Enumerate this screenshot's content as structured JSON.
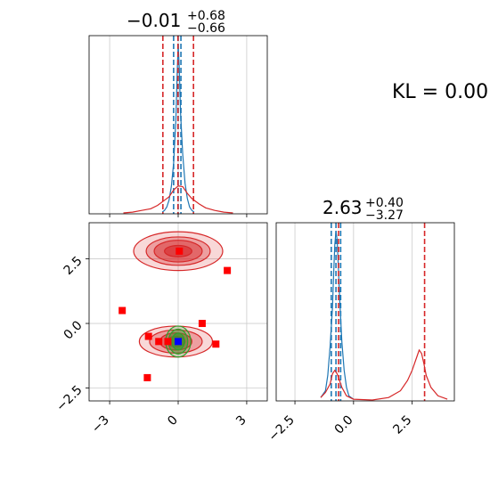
{
  "chart_data": {
    "type": "corner",
    "annotation": "KL = 0.00",
    "panels": {
      "top_left": {
        "type": "histogram",
        "title": {
          "main": "−0.01",
          "sup": "+0.68",
          "sub": "−0.66"
        },
        "xlim": [
          -3.9,
          3.9
        ],
        "grid": true,
        "series": [
          {
            "name": "",
            "color": "#1f77b4",
            "x": [
              -0.7,
              -0.6,
              -0.5,
              -0.4,
              -0.3,
              -0.2,
              -0.1,
              -0.05,
              0,
              0.05,
              0.1,
              0.2,
              0.3,
              0.4,
              0.5,
              0.6,
              0.7
            ],
            "density": [
              0.01,
              0.02,
              0.04,
              0.08,
              0.16,
              0.3,
              0.55,
              0.8,
              1.0,
              0.85,
              0.6,
              0.35,
              0.18,
              0.09,
              0.04,
              0.02,
              0.01
            ],
            "quantile_lines": [
              -0.2,
              0.0,
              0.12
            ]
          },
          {
            "name": "",
            "color": "#d62728",
            "x": [
              -2.4,
              -2.0,
              -1.6,
              -1.2,
              -0.9,
              -0.6,
              -0.4,
              -0.2,
              0,
              0.2,
              0.4,
              0.6,
              0.9,
              1.2,
              1.6,
              2.0,
              2.4
            ],
            "density": [
              0.005,
              0.01,
              0.02,
              0.03,
              0.05,
              0.08,
              0.1,
              0.14,
              0.165,
              0.16,
              0.12,
              0.09,
              0.06,
              0.035,
              0.02,
              0.01,
              0.005
            ],
            "quantile_lines": [
              -0.67,
              -0.01,
              0.67
            ]
          }
        ]
      },
      "bottom_left": {
        "type": "2d-density",
        "xlim": [
          -3.9,
          3.9
        ],
        "ylim": [
          -3.0,
          3.9
        ],
        "xticks": [
          -3,
          0,
          3
        ],
        "yticks": [
          -2.5,
          0.0,
          2.5
        ],
        "xtick_labels": [
          "−3",
          "0",
          "3"
        ],
        "ytick_labels": [
          "−2.5",
          "0.0",
          "2.5"
        ],
        "grid": true,
        "contour_regions": [
          {
            "center": [
              0.0,
              2.8
            ],
            "rx": [
              1.95,
              1.4,
              1.05,
              0.6
            ],
            "ry": [
              0.75,
              0.55,
              0.42,
              0.22
            ],
            "color": "#d62728"
          },
          {
            "center": [
              -0.1,
              -0.7
            ],
            "rx": [
              1.6,
              1.15,
              0.7,
              0.4
            ],
            "ry": [
              0.6,
              0.45,
              0.33,
              0.2
            ],
            "color": "#d62728"
          },
          {
            "center": [
              0.0,
              -0.7
            ],
            "rx": [
              0.55,
              0.42,
              0.28
            ],
            "ry": [
              0.6,
              0.48,
              0.32
            ],
            "color": "#2ca02c"
          }
        ],
        "blue_marker": [
          0.0,
          -0.7
        ],
        "red_squares": [
          [
            -2.45,
            0.5
          ],
          [
            -1.3,
            -0.5
          ],
          [
            -0.85,
            -0.7
          ],
          [
            -0.45,
            -0.7
          ],
          [
            0.05,
            2.8
          ],
          [
            1.05,
            0.0
          ],
          [
            1.65,
            -0.8
          ],
          [
            2.15,
            2.05
          ],
          [
            -1.35,
            -2.1
          ]
        ]
      },
      "bottom_right": {
        "type": "histogram",
        "title": {
          "main": "2.63",
          "sup": "+0.40",
          "sub": "−3.27"
        },
        "xlim": [
          -3.3,
          4.3
        ],
        "xticks": [
          -2.5,
          0.0,
          2.5
        ],
        "xtick_labels": [
          "−2.5",
          "0.0",
          "2.5"
        ],
        "grid": true,
        "series": [
          {
            "name": "",
            "color": "#1f77b4",
            "x": [
              -1.4,
              -1.2,
              -1.1,
              -1.0,
              -0.9,
              -0.85,
              -0.8,
              -0.75,
              -0.7,
              -0.65,
              -0.6,
              -0.5,
              -0.4,
              -0.3,
              -0.2,
              0.0
            ],
            "density": [
              0.02,
              0.06,
              0.15,
              0.32,
              0.55,
              0.75,
              0.92,
              1.0,
              0.95,
              0.8,
              0.62,
              0.35,
              0.18,
              0.08,
              0.03,
              0.01
            ],
            "quantile_lines": [
              -0.95,
              -0.75,
              -0.55
            ]
          },
          {
            "name": "",
            "color": "#d62728",
            "x": [
              -1.4,
              -1.2,
              -1.0,
              -0.9,
              -0.8,
              -0.7,
              -0.6,
              -0.5,
              -0.3,
              0.0,
              0.8,
              1.5,
              2.0,
              2.3,
              2.5,
              2.7,
              2.8,
              2.9,
              3.0,
              3.1,
              3.3,
              3.6,
              4.0
            ],
            "density": [
              0.02,
              0.05,
              0.1,
              0.16,
              0.18,
              0.16,
              0.12,
              0.08,
              0.03,
              0.01,
              0.005,
              0.02,
              0.06,
              0.12,
              0.18,
              0.26,
              0.3,
              0.28,
              0.22,
              0.15,
              0.08,
              0.03,
              0.01
            ],
            "quantile_lines": [
              -0.64,
              3.03
            ]
          }
        ]
      }
    }
  }
}
